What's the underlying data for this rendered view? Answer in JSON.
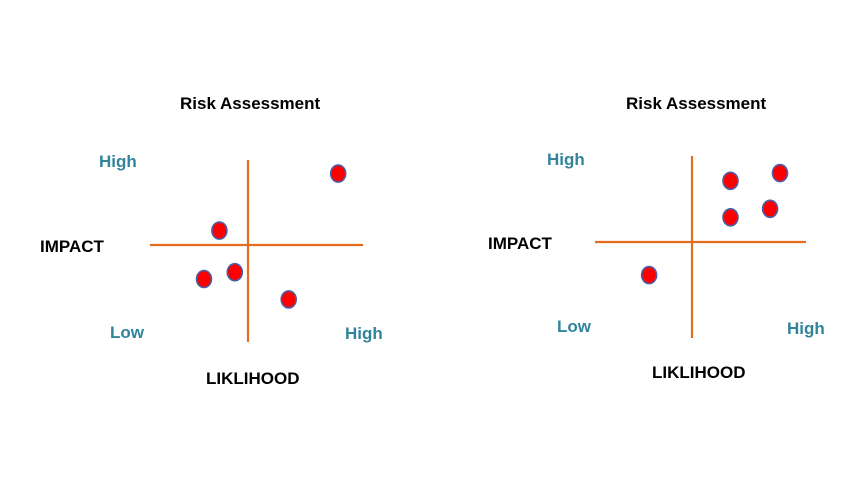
{
  "colors": {
    "axis": "#E46C1E",
    "point_fill": "#FF0000",
    "point_stroke": "#4A5FA8",
    "tick_label": "#31849B",
    "text": "#000000"
  },
  "chart_data": [
    {
      "type": "scatter",
      "title": "Risk Assessment",
      "xlabel": "LIKLIHOOD",
      "ylabel": "IMPACT",
      "x_low_label": "Low",
      "x_high_label": "High",
      "y_high_label": "High",
      "xlim": [
        -1,
        1
      ],
      "ylim": [
        -1,
        1
      ],
      "grid": false,
      "points": [
        {
          "x": 0.82,
          "y": 0.84
        },
        {
          "x": -0.26,
          "y": 0.17
        },
        {
          "x": -0.12,
          "y": -0.32
        },
        {
          "x": -0.4,
          "y": -0.4
        },
        {
          "x": 0.37,
          "y": -0.64
        }
      ]
    },
    {
      "type": "scatter",
      "title": "Risk Assessment",
      "xlabel": "LIKLIHOOD",
      "ylabel": "IMPACT",
      "x_low_label": "Low",
      "x_high_label": "High",
      "y_high_label": "High",
      "xlim": [
        -1,
        1
      ],
      "ylim": [
        -1,
        1
      ],
      "grid": false,
      "points": [
        {
          "x": 0.35,
          "y": 0.72
        },
        {
          "x": 0.8,
          "y": 0.81
        },
        {
          "x": 0.71,
          "y": 0.39
        },
        {
          "x": 0.35,
          "y": 0.29
        },
        {
          "x": -0.39,
          "y": -0.39
        }
      ]
    }
  ]
}
